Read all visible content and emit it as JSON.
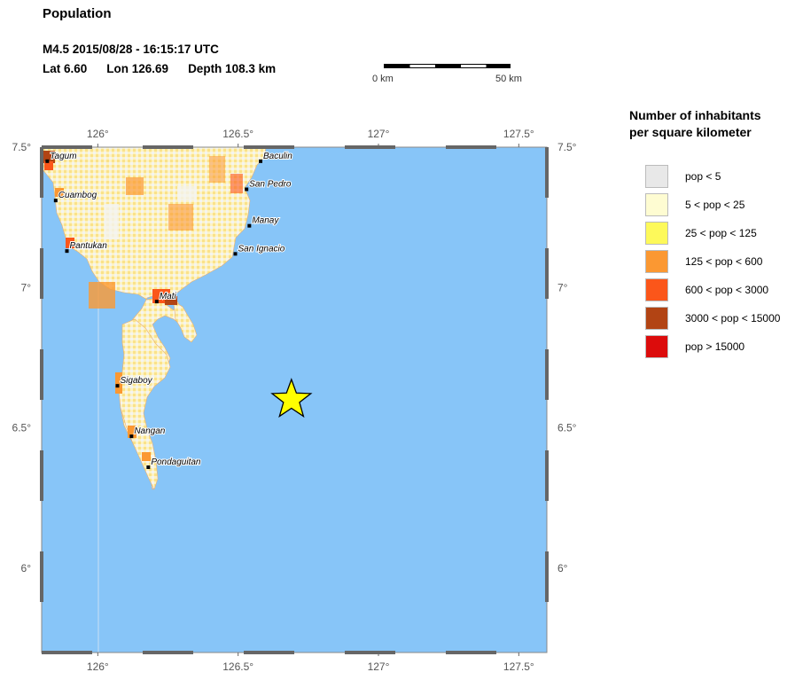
{
  "header": {
    "title": "Population",
    "event": "M4.5  2015/08/28 - 16:15:17 UTC",
    "lat": "Lat  6.60",
    "lon": "Lon 126.69",
    "depth": "Depth 108.3 km"
  },
  "scale_bar": {
    "start_label": "0 km",
    "end_label": "50 km"
  },
  "map": {
    "lon_range": [
      125.8,
      127.6
    ],
    "lat_range": [
      5.7,
      7.5
    ],
    "lon_ticks": [
      {
        "value": 126.0,
        "label": "126°"
      },
      {
        "value": 126.5,
        "label": "126.5°"
      },
      {
        "value": 127.0,
        "label": "127°"
      },
      {
        "value": 127.5,
        "label": "127.5°"
      }
    ],
    "lat_ticks": [
      {
        "value": 7.5,
        "label": "7.5°"
      },
      {
        "value": 7.0,
        "label": "7°"
      },
      {
        "value": 6.5,
        "label": "6.5°"
      },
      {
        "value": 6.0,
        "label": "6°"
      }
    ],
    "epicenter": {
      "lon": 126.69,
      "lat": 6.6,
      "color": "#ffff00"
    },
    "water_color": "#87c5f8",
    "cities": [
      {
        "name": "Tagum",
        "lon": 125.82,
        "lat": 7.45
      },
      {
        "name": "Baculin",
        "lon": 126.58,
        "lat": 7.45
      },
      {
        "name": "Cuambog",
        "lon": 125.85,
        "lat": 7.31
      },
      {
        "name": "San Pedro",
        "lon": 126.53,
        "lat": 7.35
      },
      {
        "name": "Manay",
        "lon": 126.54,
        "lat": 7.22
      },
      {
        "name": "Pantukan",
        "lon": 125.89,
        "lat": 7.13
      },
      {
        "name": "San Ignacio",
        "lon": 126.49,
        "lat": 7.12
      },
      {
        "name": "Mati",
        "lon": 126.21,
        "lat": 6.95
      },
      {
        "name": "Sigaboy",
        "lon": 126.07,
        "lat": 6.65
      },
      {
        "name": "Nangan",
        "lon": 126.12,
        "lat": 6.47
      },
      {
        "name": "Pondaguitan",
        "lon": 126.18,
        "lat": 6.36
      }
    ]
  },
  "legend": {
    "title_line1": "Number of inhabitants",
    "title_line2": "per square kilometer",
    "items": [
      {
        "label": "pop < 5",
        "color": "#e8e8e8"
      },
      {
        "label": "5 < pop < 25",
        "color": "#fefcd2"
      },
      {
        "label": "25 < pop < 125",
        "color": "#fdf95a"
      },
      {
        "label": "125 < pop < 600",
        "color": "#fb9832"
      },
      {
        "label": "600 < pop < 3000",
        "color": "#fb561a"
      },
      {
        "label": "3000 < pop < 15000",
        "color": "#b24414"
      },
      {
        "label": "pop > 15000",
        "color": "#dc0c0c"
      }
    ]
  }
}
